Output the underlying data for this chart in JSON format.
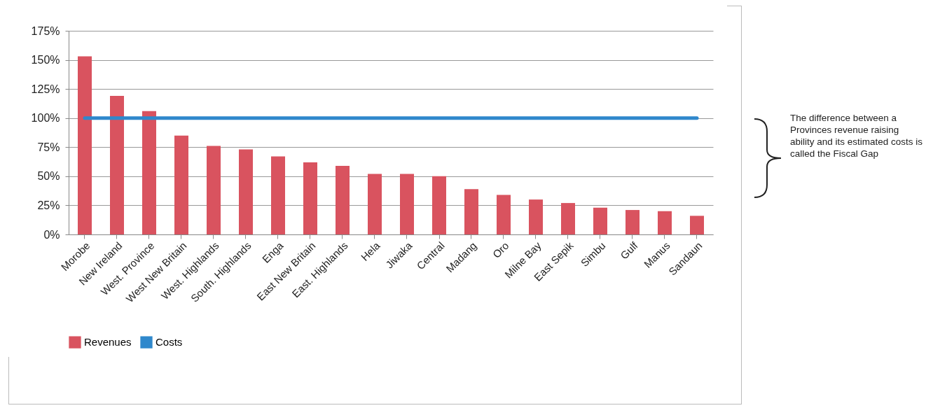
{
  "chart_data": {
    "type": "bar",
    "categories": [
      "Morobe",
      "New Ireland",
      "West. Province",
      "West New Britain",
      "West. Highlands",
      "South. Highlands",
      "Enga",
      "East New Britain",
      "East. Highlands",
      "Hela",
      "Jiwaka",
      "Central",
      "Madang",
      "Oro",
      "Milne Bay",
      "East Sepik",
      "Simbu",
      "Gulf",
      "Manus",
      "Sandaun"
    ],
    "series": [
      {
        "name": "Revenues",
        "color": "#d9535f",
        "values": [
          153,
          119,
          106,
          85,
          76,
          73,
          67,
          62,
          59,
          52,
          52,
          50,
          39,
          34,
          30,
          27,
          23,
          21,
          20,
          16
        ]
      },
      {
        "name": "Costs",
        "type": "line",
        "color": "#2f88cc",
        "values": [
          100,
          100,
          100,
          100,
          100,
          100,
          100,
          100,
          100,
          100,
          100,
          100,
          100,
          100,
          100,
          100,
          100,
          100,
          100,
          100
        ]
      }
    ],
    "ylim": [
      0,
      175
    ],
    "yticks": [
      {
        "value": 0,
        "label": "0%"
      },
      {
        "value": 25,
        "label": "25%"
      },
      {
        "value": 50,
        "label": "50%"
      },
      {
        "value": 75,
        "label": "75%"
      },
      {
        "value": 100,
        "label": "100%"
      },
      {
        "value": 125,
        "label": "125%"
      },
      {
        "value": 150,
        "label": "150%"
      },
      {
        "value": 175,
        "label": "175%"
      }
    ],
    "grid": "y",
    "legend": "bottom",
    "annotations": [
      "The difference between a Provinces revenue raising ability and its estimated costs is called the Fiscal Gap"
    ]
  }
}
